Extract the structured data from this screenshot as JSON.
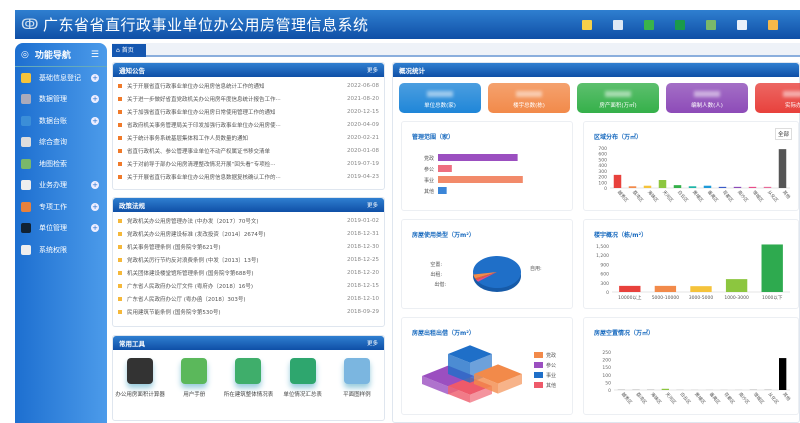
{
  "header": {
    "title": "广东省省直行政事业单位办公用房管理信息系统",
    "icons": [
      "note-icon",
      "message-icon",
      "sms-icon",
      "phone-icon",
      "map-icon",
      "download-icon",
      "box-icon"
    ]
  },
  "sidebar": {
    "title": "功能导航",
    "items": [
      {
        "label": "基础信息登记",
        "icon": "register-icon",
        "expand": true
      },
      {
        "label": "数据管理",
        "icon": "data-icon",
        "expand": true
      },
      {
        "label": "数据台账",
        "icon": "ledger-icon",
        "expand": true
      },
      {
        "label": "综合查询",
        "icon": "search-icon",
        "expand": false
      },
      {
        "label": "地图检索",
        "icon": "map-icon",
        "expand": false
      },
      {
        "label": "业务办理",
        "icon": "business-icon",
        "expand": true
      },
      {
        "label": "专项工作",
        "icon": "briefcase-icon",
        "expand": true
      },
      {
        "label": "单位管理",
        "icon": "gear-icon",
        "expand": true
      },
      {
        "label": "系统权限",
        "icon": "lock-icon",
        "expand": false
      }
    ]
  },
  "tabs": {
    "home": "首页"
  },
  "notices": {
    "title": "通知公告",
    "more": "更多",
    "items": [
      {
        "text": "关于开展省直行政事业单位办公用房信息统计工作的通知",
        "date": "2022-06-08"
      },
      {
        "text": "关于进一步做好省直党政机关办公用房年度信息统计报告工作···",
        "date": "2021-08-20"
      },
      {
        "text": "关于加强省直行政事业单位办公用房日常使用管理工作的通知",
        "date": "2020-12-15"
      },
      {
        "text": "省政府机关事务管理局关于印发加强行政事业单位办公用房使···",
        "date": "2020-04-09"
      },
      {
        "text": "关于统计事务系统基层集体和工作人员数量的通知",
        "date": "2020-02-21"
      },
      {
        "text": "省直行政机关、参公管理事业单位不动产权属证书移交清单",
        "date": "2020-01-08"
      },
      {
        "text": "关于对前导于部办公用房清理整改情况开展“回头看”专项检···",
        "date": "2019-07-19"
      },
      {
        "text": "关于开展省直行政事业单位办公用房信息数据复核确认工作的···",
        "date": "2019-04-23"
      }
    ]
  },
  "policies": {
    "title": "政策法规",
    "more": "更多",
    "items": [
      {
        "text": "党政机关办公用房管理办法 (中办发〔2017〕70号文)",
        "date": "2019-01-02"
      },
      {
        "text": "党政机关办公用房建设标准 (发改投资〔2014〕2674号)",
        "date": "2018-12-31"
      },
      {
        "text": "机关事务管理条例 (国务院令第621号)",
        "date": "2018-12-30"
      },
      {
        "text": "党政机关厉行节约反对浪费条例 (中发〔2013〕13号)",
        "date": "2018-12-25"
      },
      {
        "text": "机关团体建设楼堂馆所管理条例 (国务院令第688号)",
        "date": "2018-12-20"
      },
      {
        "text": "广东省人民政府办公厅文件 (粤府办〔2018〕16号)",
        "date": "2018-12-15"
      },
      {
        "text": "广东省人民政府办公厅 (粤办函〔2018〕303号)",
        "date": "2018-12-10"
      },
      {
        "text": "民用建筑节能条例 (国务院令第530号)",
        "date": "2018-09-29"
      }
    ]
  },
  "tools": {
    "title": "常用工具",
    "more": "更多",
    "items": [
      {
        "label": "办公用房面积计算器",
        "icon": "calculator-icon",
        "color": "#333"
      },
      {
        "label": "用户手册",
        "icon": "manual-icon",
        "color": "#5bb85b"
      },
      {
        "label": "所在建筑整体情况表",
        "icon": "building-sheet-icon",
        "color": "#3fae6b"
      },
      {
        "label": "单位情况汇总表",
        "icon": "summary-sheet-icon",
        "color": "#2ea66e"
      },
      {
        "label": "平面图样例",
        "icon": "floorplan-icon",
        "color": "#7bb6e0"
      }
    ]
  },
  "overview": {
    "title": "概况统计",
    "cards": [
      {
        "label": "单位总数(家)",
        "color": "#1f86d8"
      },
      {
        "label": "楼宇总数(栋)",
        "color": "#f28a4a"
      },
      {
        "label": "房产面积(万㎡)",
        "color": "#35b04a"
      },
      {
        "label": "编制人数(人)",
        "color": "#8d4bb8"
      },
      {
        "label": "实际办公",
        "color": "#e8413c"
      }
    ]
  },
  "chart_data": [
    {
      "type": "bar",
      "orientation": "horizontal",
      "title": "管理范围（家）",
      "categories": [
        "党政",
        "参公",
        "事业",
        "其他"
      ],
      "values": [
        230,
        40,
        245,
        25
      ],
      "colors": [
        "#9b4fc0",
        "#ee6f80",
        "#f28a6a",
        "#3b86d8"
      ]
    },
    {
      "type": "bar",
      "title": "区域分布（万㎡）",
      "toggle": "全部",
      "categories": [
        "越秀区",
        "荔湾区",
        "海珠区",
        "天河区",
        "白云区",
        "黄埔区",
        "番禺区",
        "花都区",
        "南沙区",
        "增城区",
        "从化区",
        "其他"
      ],
      "values": [
        230,
        30,
        40,
        140,
        50,
        30,
        40,
        20,
        20,
        20,
        20,
        680
      ],
      "ylim": [
        0,
        700
      ],
      "yticks": [
        0,
        100,
        200,
        300,
        400,
        500,
        600,
        700
      ],
      "colors": [
        "#e8413c",
        "#f28a4a",
        "#f5c33b",
        "#8cc63f",
        "#35b04a",
        "#1fb5a8",
        "#1f9ad8",
        "#3b5cc8",
        "#8d4bb8",
        "#e84d8a",
        "#e86b9a",
        "#555"
      ]
    },
    {
      "type": "pie",
      "title": "房屋使用类型（万m²）",
      "categories": [
        "自用",
        "空置",
        "出租",
        "出借"
      ],
      "values": [
        92,
        2,
        2,
        4
      ],
      "colors": [
        "#1f6fc8",
        "#e84d8a",
        "#e85a3c",
        "#f28a4a"
      ]
    },
    {
      "type": "bar",
      "title": "楼宇概况（栋/m²）",
      "categories": [
        "10000以上",
        "5000-10000",
        "3000-5000",
        "1000-3000",
        "1000以下"
      ],
      "values": [
        200,
        200,
        190,
        420,
        1550
      ],
      "ylim": [
        0,
        1500
      ],
      "yticks": [
        0,
        300,
        600,
        900,
        1200,
        1500
      ],
      "colors": [
        "#e8413c",
        "#f28a4a",
        "#f5c33b",
        "#8cc63f",
        "#2eaa4f"
      ]
    },
    {
      "type": "block3d",
      "title": "房屋出租出借（万m²）",
      "legend": [
        "党政",
        "参公",
        "事业",
        "其他"
      ],
      "colors": [
        "#f28a4a",
        "#9b4fc0",
        "#1f6fc8",
        "#ee5a6a"
      ]
    },
    {
      "type": "bar",
      "title": "房屋空置情况（万㎡）",
      "categories": [
        "越秀区",
        "荔湾区",
        "海珠区",
        "天河区",
        "白云区",
        "黄埔区",
        "番禺区",
        "花都区",
        "南沙区",
        "增城区",
        "从化区",
        "其他"
      ],
      "values": [
        5,
        5,
        5,
        8,
        3,
        2,
        2,
        2,
        2,
        5,
        5,
        210
      ],
      "ylim": [
        0,
        250
      ],
      "yticks": [
        0,
        50,
        100,
        150,
        200,
        250
      ],
      "colors": [
        "#ccc",
        "#ccc",
        "#ccc",
        "#8cc63f",
        "#ccc",
        "#ccc",
        "#ccc",
        "#ccc",
        "#ccc",
        "#ccc",
        "#ccc",
        "#000"
      ]
    }
  ]
}
